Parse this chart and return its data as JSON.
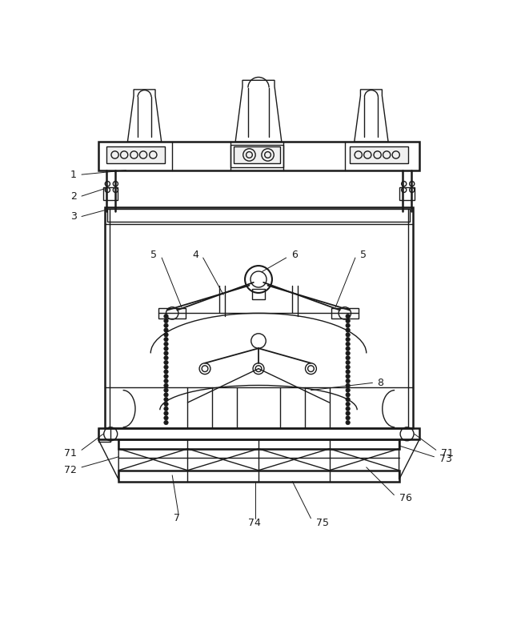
{
  "bg_color": "#ffffff",
  "line_color": "#1a1a1a",
  "lw": 1.0,
  "tlw": 1.8
}
